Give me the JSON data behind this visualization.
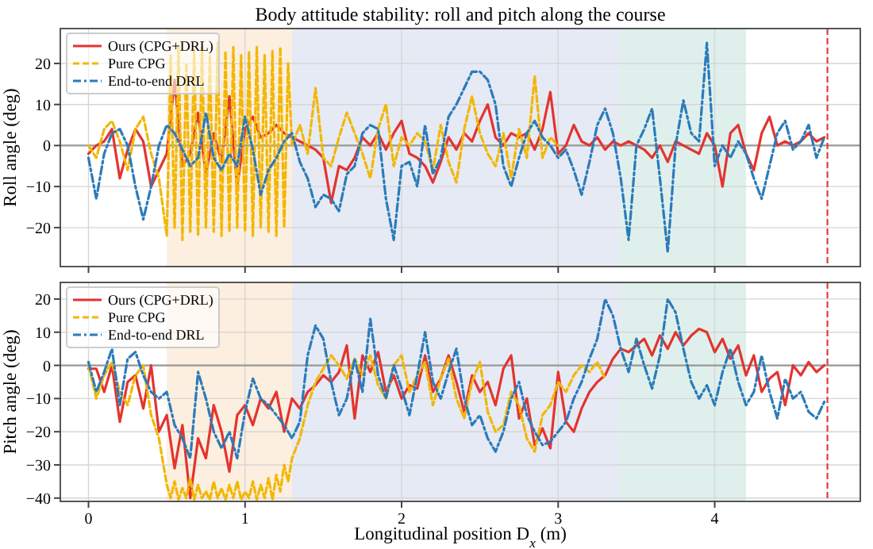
{
  "chart_data": [
    {
      "type": "line",
      "title": "Body attitude stability: roll and pitch along the course",
      "ylabel": "Roll angle (deg)",
      "xlim": [
        -0.18,
        4.93
      ],
      "xticks": [
        0,
        1,
        2,
        3,
        4
      ],
      "ylim": [
        -29.5,
        28.5
      ],
      "yticks": [
        -20,
        -10,
        0,
        10,
        20
      ],
      "tick_labels": "y",
      "grid": true,
      "legend": "top left",
      "x": [
        0,
        0.05,
        0.1,
        0.15,
        0.2,
        0.25,
        0.3,
        0.35,
        0.4,
        0.45,
        0.5,
        0.55,
        0.6,
        0.65,
        0.7,
        0.75,
        0.8,
        0.85,
        0.9,
        0.95,
        1,
        1.05,
        1.1,
        1.15,
        1.2,
        1.25,
        1.3,
        1.35,
        1.4,
        1.45,
        1.5,
        1.55,
        1.6,
        1.65,
        1.7,
        1.75,
        1.8,
        1.85,
        1.9,
        1.95,
        2,
        2.05,
        2.1,
        2.15,
        2.2,
        2.25,
        2.3,
        2.35,
        2.4,
        2.45,
        2.5,
        2.55,
        2.6,
        2.65,
        2.7,
        2.75,
        2.8,
        2.85,
        2.9,
        2.95,
        3,
        3.05,
        3.1,
        3.15,
        3.2,
        3.25,
        3.3,
        3.35,
        3.4,
        3.45,
        3.5,
        3.55,
        3.6,
        3.65,
        3.7,
        3.75,
        3.8,
        3.85,
        3.9,
        3.95,
        4,
        4.05,
        4.1,
        4.15,
        4.2,
        4.25,
        4.3,
        4.35,
        4.4,
        4.45,
        4.5,
        4.55,
        4.6,
        4.65,
        4.7
      ],
      "bands": [
        {
          "axis": "x",
          "from": 0.5,
          "to": 1.3,
          "color": "#fcefdf"
        },
        {
          "axis": "x",
          "from": 1.3,
          "to": 3.4,
          "color": "#e6eaf4"
        },
        {
          "axis": "x",
          "from": 3.4,
          "to": 4.2,
          "color": "#dff0ec"
        }
      ],
      "ref_lines": [
        {
          "axis": "y",
          "value": 0,
          "color": "#999999"
        },
        {
          "axis": "x",
          "value": 4.72,
          "color": "#e03c3c",
          "line_style": "dashed"
        }
      ],
      "series": [
        {
          "name": "Ours (CPG+DRL)",
          "color": "#e3342f",
          "line_style": "solid",
          "values": [
            -2,
            0,
            1,
            4,
            -8,
            -1,
            4,
            1,
            -10,
            -6,
            -2,
            16,
            -5,
            -2,
            8,
            -7,
            3,
            -4,
            12,
            -10,
            4,
            7,
            2,
            3,
            5,
            3,
            2,
            1,
            0,
            -1,
            -3,
            -14,
            -5,
            -6,
            -3,
            2,
            0,
            3,
            -1,
            3,
            6,
            -2,
            -3,
            -5,
            -9,
            -4,
            2,
            -1,
            3,
            1,
            6,
            10,
            2,
            0,
            3,
            2,
            3,
            -1,
            4,
            13,
            -2,
            0,
            5,
            1,
            0,
            2,
            -1,
            1,
            0,
            1,
            0,
            -1,
            -3,
            0,
            -4,
            1,
            0,
            -1,
            -2,
            3,
            0,
            -10,
            3,
            5,
            -2,
            -6,
            3,
            7,
            0,
            1,
            0,
            1,
            3,
            1,
            2
          ]
        },
        {
          "name": "Pure CPG",
          "color": "#f2b705",
          "line_style": "dashed",
          "x": [
            0,
            0.05,
            0.1,
            0.15,
            0.2,
            0.25,
            0.3,
            0.35,
            0.4,
            0.45,
            0.5,
            0.525,
            0.55,
            0.575,
            0.6,
            0.625,
            0.65,
            0.675,
            0.7,
            0.725,
            0.75,
            0.775,
            0.8,
            0.825,
            0.85,
            0.875,
            0.9,
            0.925,
            0.95,
            0.975,
            1,
            1.025,
            1.05,
            1.075,
            1.1,
            1.125,
            1.15,
            1.175,
            1.2,
            1.225,
            1.25,
            1.275,
            1.3,
            1.35,
            1.4,
            1.45,
            1.5,
            1.55,
            1.6,
            1.65,
            1.7,
            1.75,
            1.8,
            1.85,
            1.9,
            1.95,
            2,
            2.05,
            2.1,
            2.15,
            2.2,
            2.25,
            2.3,
            2.35,
            2.4,
            2.45,
            2.5,
            2.55,
            2.6,
            2.65,
            2.7,
            2.75,
            2.8,
            2.85,
            2.9,
            2.95,
            3
          ],
          "values": [
            0,
            -3,
            4,
            6,
            1,
            -6,
            4,
            7,
            -2,
            -8,
            -22,
            22,
            -20,
            24,
            -23,
            20,
            -21,
            23,
            -22,
            24,
            -20,
            22,
            -21,
            25,
            -22,
            23,
            -21,
            24,
            -20,
            22,
            -21,
            23,
            -22,
            24,
            -20,
            22,
            -21,
            23,
            -22,
            24,
            -20,
            20,
            0,
            5,
            -2,
            14,
            -3,
            -5,
            2,
            8,
            3,
            -2,
            -8,
            4,
            10,
            -5,
            2,
            0,
            3,
            1,
            -6,
            5,
            -4,
            -9,
            4,
            12,
            3,
            -2,
            -5,
            3,
            -8,
            4,
            -3,
            17,
            -3,
            2,
            0
          ]
        },
        {
          "name": "End-to-end DRL",
          "color": "#2b7bba",
          "line_style": "dashdot",
          "values": [
            -3,
            -13,
            -2,
            3,
            4,
            0,
            -10,
            -18,
            -10,
            0,
            5,
            3,
            -1,
            -5,
            -3,
            8,
            -3,
            -6,
            -2,
            -5,
            7,
            -1,
            -12,
            -6,
            -3,
            1,
            3,
            -4,
            -8,
            -15,
            -12,
            -13,
            -16,
            -7,
            -5,
            3,
            5,
            4,
            -13,
            -23,
            -5,
            -4,
            -10,
            5,
            -7,
            -3,
            7,
            10,
            14,
            18,
            18,
            16,
            10,
            -5,
            -10,
            -3,
            3,
            6,
            2,
            0,
            -3,
            -1,
            -6,
            -12,
            -4,
            5,
            9,
            3,
            -8,
            -23,
            0,
            4,
            9,
            -8,
            -26,
            0,
            11,
            3,
            1,
            25,
            -5,
            0,
            -3,
            1,
            -2,
            -8,
            -13,
            -5,
            3,
            6,
            -1,
            1,
            5,
            -3,
            2
          ]
        }
      ]
    },
    {
      "type": "line",
      "xlabel": "Longitudinal position D$_{x}$ (m)",
      "ylabel": "Pitch angle (deg)",
      "xlim": [
        -0.18,
        4.93
      ],
      "xticks": [
        0,
        1,
        2,
        3,
        4
      ],
      "ylim": [
        -41,
        25
      ],
      "yticks": [
        -40,
        -30,
        -20,
        -10,
        0,
        10,
        20
      ],
      "grid": true,
      "legend": "top left",
      "x": [
        0,
        0.05,
        0.1,
        0.15,
        0.2,
        0.25,
        0.3,
        0.35,
        0.4,
        0.45,
        0.5,
        0.55,
        0.6,
        0.65,
        0.7,
        0.75,
        0.8,
        0.85,
        0.9,
        0.95,
        1,
        1.05,
        1.1,
        1.15,
        1.2,
        1.25,
        1.3,
        1.35,
        1.4,
        1.45,
        1.5,
        1.55,
        1.6,
        1.65,
        1.7,
        1.75,
        1.8,
        1.85,
        1.9,
        1.95,
        2,
        2.05,
        2.1,
        2.15,
        2.2,
        2.25,
        2.3,
        2.35,
        2.4,
        2.45,
        2.5,
        2.55,
        2.6,
        2.65,
        2.7,
        2.75,
        2.8,
        2.85,
        2.9,
        2.95,
        3,
        3.05,
        3.1,
        3.15,
        3.2,
        3.25,
        3.3,
        3.35,
        3.4,
        3.45,
        3.5,
        3.55,
        3.6,
        3.65,
        3.7,
        3.75,
        3.8,
        3.85,
        3.9,
        3.95,
        4,
        4.05,
        4.1,
        4.15,
        4.2,
        4.25,
        4.3,
        4.35,
        4.4,
        4.45,
        4.5,
        4.55,
        4.6,
        4.65,
        4.7
      ],
      "bands": [
        {
          "axis": "x",
          "from": 0.5,
          "to": 1.3,
          "color": "#fcefdf"
        },
        {
          "axis": "x",
          "from": 1.3,
          "to": 3.4,
          "color": "#e6eaf4"
        },
        {
          "axis": "x",
          "from": 3.4,
          "to": 4.2,
          "color": "#dff0ec"
        }
      ],
      "ref_lines": [
        {
          "axis": "y",
          "value": 0,
          "color": "#999999"
        },
        {
          "axis": "x",
          "value": 4.72,
          "color": "#e03c3c",
          "line_style": "dashed"
        }
      ],
      "series": [
        {
          "name": "Ours (CPG+DRL)",
          "color": "#e3342f",
          "line_style": "solid",
          "values": [
            -1,
            -1,
            -8,
            0,
            -17,
            -5,
            -3,
            -13,
            0,
            -20,
            -15,
            -31,
            -18,
            -40,
            -22,
            -28,
            -12,
            -20,
            -32,
            -15,
            -12,
            -18,
            -10,
            -13,
            -8,
            -20,
            -10,
            -13,
            -8,
            -6,
            -3,
            -5,
            -2,
            6,
            -16,
            3,
            -2,
            4,
            -8,
            -3,
            -10,
            -6,
            -7,
            3,
            -8,
            -4,
            3,
            -5,
            -14,
            -3,
            -8,
            -5,
            -12,
            -1,
            3,
            -16,
            -10,
            -24,
            -19,
            -25,
            -2,
            -17,
            -20,
            -13,
            -8,
            -5,
            -3,
            2,
            5,
            4,
            6,
            8,
            3,
            9,
            5,
            10,
            6,
            9,
            11,
            10,
            4,
            8,
            2,
            6,
            -3,
            3,
            -8,
            -4,
            -2,
            -12,
            0,
            -3,
            1,
            -2,
            0
          ]
        },
        {
          "name": "Pure CPG",
          "color": "#f2b705",
          "line_style": "dashed",
          "x": [
            0,
            0.05,
            0.1,
            0.15,
            0.2,
            0.25,
            0.3,
            0.35,
            0.4,
            0.45,
            0.5,
            0.525,
            0.55,
            0.575,
            0.6,
            0.625,
            0.65,
            0.675,
            0.7,
            0.725,
            0.75,
            0.775,
            0.8,
            0.825,
            0.85,
            0.875,
            0.9,
            0.925,
            0.95,
            0.975,
            1,
            1.025,
            1.05,
            1.075,
            1.1,
            1.125,
            1.15,
            1.175,
            1.2,
            1.225,
            1.25,
            1.275,
            1.3,
            1.35,
            1.4,
            1.45,
            1.5,
            1.55,
            1.6,
            1.65,
            1.7,
            1.75,
            1.8,
            1.85,
            1.9,
            1.95,
            2,
            2.05,
            2.1,
            2.15,
            2.2,
            2.25,
            2.3,
            2.35,
            2.4,
            2.45,
            2.5,
            2.55,
            2.6,
            2.65,
            2.7,
            2.75,
            2.8,
            2.85,
            2.9,
            2.95,
            3,
            3.05,
            3.1,
            3.15,
            3.2,
            3.25,
            3.3
          ],
          "values": [
            0,
            -10,
            -3,
            1,
            -8,
            -12,
            -3,
            0,
            -15,
            -22,
            -36,
            -40,
            -35,
            -40.5,
            -37,
            -40,
            -34,
            -40.5,
            -36,
            -40,
            -38,
            -40.5,
            -35,
            -40,
            -37,
            -40.5,
            -36,
            -40,
            -35,
            -40.5,
            -38,
            -40,
            -35,
            -40.5,
            -36,
            -40,
            -34,
            -40.5,
            -33,
            -38,
            -30,
            -35,
            -28,
            -22,
            -12,
            -5,
            -1,
            3,
            0,
            -4,
            2,
            -3,
            3,
            -6,
            -10,
            0,
            3,
            -8,
            -3,
            1,
            -12,
            -4,
            2,
            -10,
            -16,
            -5,
            1,
            -14,
            -20,
            -18,
            -8,
            -12,
            -22,
            -26,
            -15,
            -12,
            -5,
            -8,
            -3,
            0,
            -2,
            1,
            -4
          ]
        },
        {
          "name": "End-to-end DRL",
          "color": "#2b7bba",
          "line_style": "dashdot",
          "values": [
            1,
            -8,
            -2,
            5,
            -12,
            2,
            4,
            -3,
            -8,
            -10,
            -8,
            -18,
            -22,
            -28,
            -2,
            -10,
            -20,
            -25,
            -20,
            -28,
            -14,
            -4,
            -10,
            -12,
            -15,
            -18,
            -22,
            -17,
            3,
            12,
            8,
            -5,
            -15,
            -10,
            2,
            -8,
            14,
            -3,
            -10,
            0,
            -7,
            -15,
            -3,
            10,
            -5,
            -10,
            -2,
            5,
            -10,
            -18,
            -15,
            -22,
            -26,
            -20,
            -10,
            -5,
            -15,
            -20,
            -24,
            -23,
            -20,
            -17,
            -10,
            -5,
            2,
            8,
            20,
            15,
            5,
            -2,
            8,
            0,
            -7,
            3,
            20,
            16,
            5,
            -5,
            -10,
            -6,
            -12,
            -2,
            5,
            -5,
            -12,
            -8,
            3,
            -8,
            -16,
            -4,
            -10,
            -8,
            -14,
            -16,
            -11
          ]
        }
      ]
    }
  ]
}
